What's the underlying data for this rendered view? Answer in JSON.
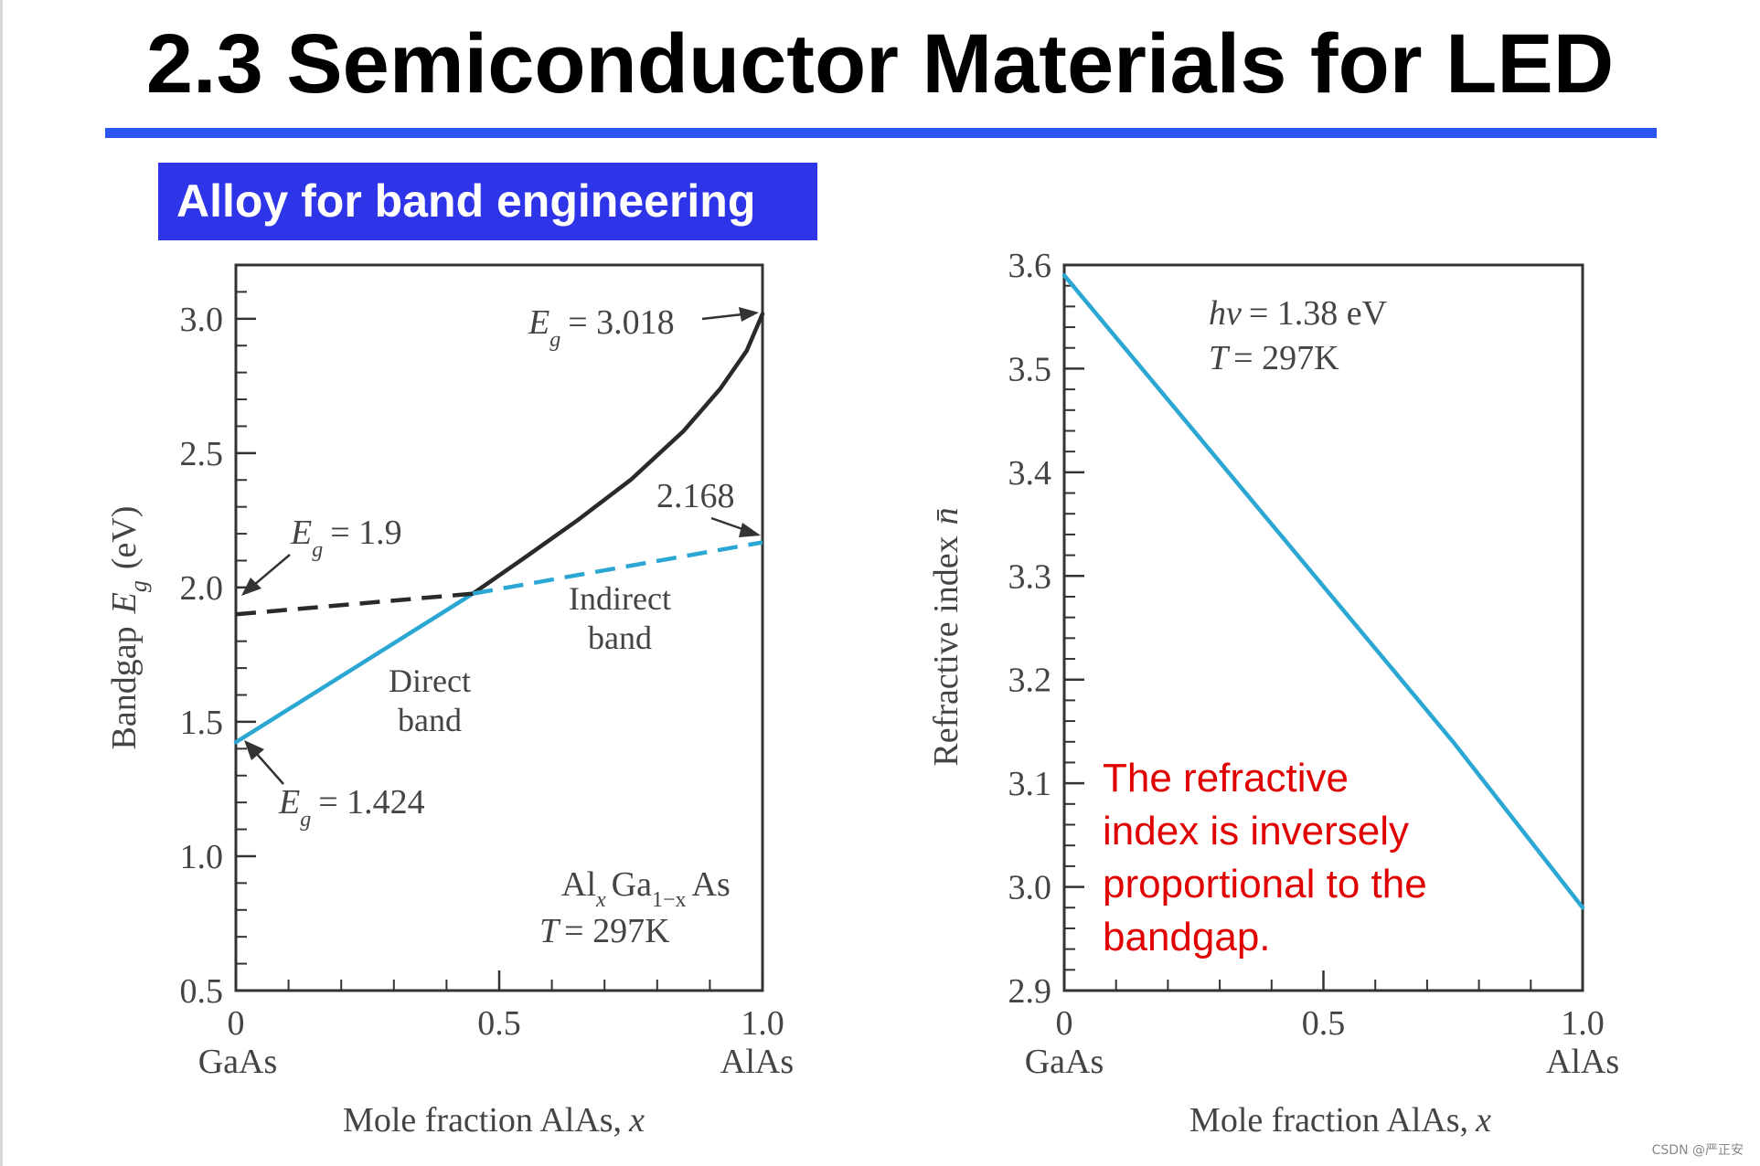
{
  "slide": {
    "title": "2.3 Semiconductor Materials for LED",
    "subtitle_badge": "Alloy for band engineering",
    "note": "The refractive index is inversely proportional to the bandgap.",
    "note_lines": [
      "The refractive",
      "index is inversely",
      "proportional to the",
      "bandgap."
    ],
    "watermark": "CSDN @严正安",
    "accent_rule_color": "#2a55f2",
    "badge_color": "#2e35e8",
    "note_color": "#e00000"
  },
  "chart_data": [
    {
      "type": "line",
      "ylabel_main": "Bandgap",
      "ylabel_symbol": "E",
      "ylabel_sub": "g",
      "ylabel_unit": "(eV)",
      "xlabel_main": "Mole fraction  AlAs,",
      "xlabel_var": "x",
      "xlim": [
        0,
        1.0
      ],
      "ylim": [
        0.5,
        3.2
      ],
      "xticks": [
        "0",
        "0.5",
        "1.0"
      ],
      "xtick_values": [
        0,
        0.5,
        1.0
      ],
      "xend_labels": [
        "GaAs",
        "AlAs"
      ],
      "yticks": [
        "0.5",
        "1.0",
        "1.5",
        "2.0",
        "2.5",
        "3.0"
      ],
      "ytick_values": [
        0.5,
        1.0,
        1.5,
        2.0,
        2.5,
        3.0
      ],
      "series": [
        {
          "name": "Direct band",
          "label_lines": [
            "Direct",
            "band"
          ],
          "color": "#2aa7d3",
          "style": "solid",
          "x": [
            0,
            0.45
          ],
          "y": [
            1.424,
            1.977
          ]
        },
        {
          "name": "Direct band",
          "color": "#2a2a2a",
          "style": "solid",
          "x": [
            0.45,
            0.55,
            0.65,
            0.75,
            0.85,
            0.92,
            0.97,
            1.0
          ],
          "y": [
            1.977,
            2.113,
            2.252,
            2.401,
            2.582,
            2.74,
            2.881,
            3.018
          ]
        },
        {
          "name": "Indirect band",
          "label_lines": [
            "Indirect",
            "band"
          ],
          "color": "#2a2a2a",
          "style": "dashed",
          "x": [
            0,
            0.45
          ],
          "y": [
            1.9,
            1.977
          ]
        },
        {
          "name": "Indirect band",
          "color": "#2aa7d3",
          "style": "dashed",
          "x": [
            0.45,
            1.0
          ],
          "y": [
            1.977,
            2.168
          ]
        }
      ],
      "annotations": {
        "eg_prefix": "E",
        "eg_sub": "g",
        "eg_top": "= 3.018",
        "eg_mid": "= 1.9",
        "eg_low": "= 1.424",
        "top_right_value": "2.168",
        "alloy_al": "Al",
        "alloy_x": "x",
        "alloy_ga": "Ga",
        "alloy_sub": "1−x",
        "alloy_as": "As",
        "temp_var": "T",
        "temp_text": "= 297K"
      }
    },
    {
      "type": "line",
      "ylabel": "Refractive  index",
      "ylabel_symbol": "n̄",
      "xlabel_main": "Mole fraction  AlAs,",
      "xlabel_var": "x",
      "xlim": [
        0,
        1.0
      ],
      "ylim": [
        2.9,
        3.6
      ],
      "xticks": [
        "0",
        "0.5",
        "1.0"
      ],
      "xtick_values": [
        0,
        0.5,
        1.0
      ],
      "xend_labels": [
        "GaAs",
        "AlAs"
      ],
      "yticks": [
        "2.9",
        "3.0",
        "3.1",
        "3.2",
        "3.3",
        "3.4",
        "3.5",
        "3.6"
      ],
      "ytick_values": [
        2.9,
        3.0,
        3.1,
        3.2,
        3.3,
        3.4,
        3.5,
        3.6
      ],
      "series": [
        {
          "color": "#2aa7d3",
          "x": [
            0,
            0.25,
            0.5,
            0.75,
            1.0
          ],
          "y": [
            3.59,
            3.44,
            3.29,
            3.14,
            2.98
          ]
        }
      ],
      "annotations": {
        "hv_var": "hν",
        "hv_text": "= 1.38 eV",
        "temp_var": "T",
        "temp_text": "= 297K"
      }
    }
  ]
}
